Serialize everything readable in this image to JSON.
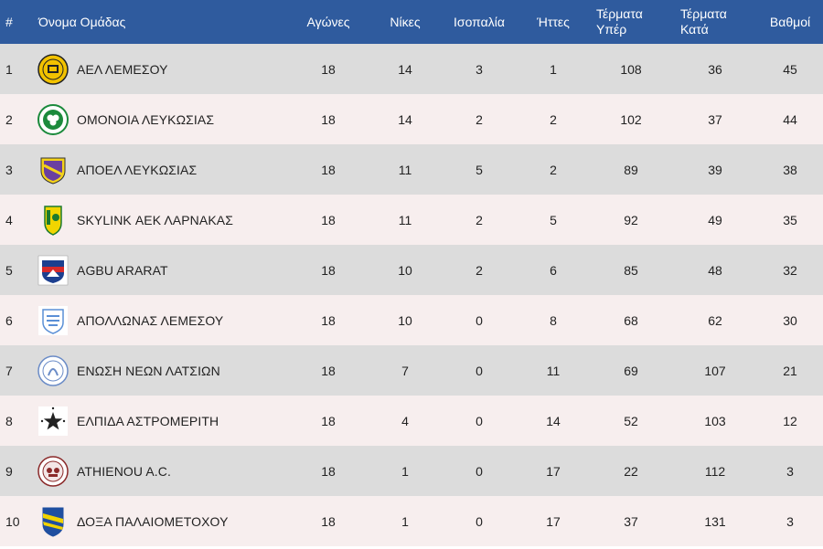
{
  "table": {
    "headers": {
      "rank": "#",
      "team": "Όνομα Ομάδας",
      "played": "Αγώνες",
      "wins": "Νίκες",
      "draws": "Ισοπαλία",
      "losses": "Ήττες",
      "goals_for": "Τέρματα Υπέρ",
      "goals_against": "Τέρματα Κατά",
      "points": "Βαθμοί"
    },
    "rows": [
      {
        "rank": "1",
        "team": "ΑΕΛ ΛΕΜΕΣΟΥ",
        "logo": "ael-limassol-crest-icon",
        "played": "18",
        "wins": "14",
        "draws": "3",
        "losses": "1",
        "goals_for": "108",
        "goals_against": "36",
        "points": "45"
      },
      {
        "rank": "2",
        "team": "ΟΜΟΝΟΙΑ ΛΕΥΚΩΣΙΑΣ",
        "logo": "omonoia-crest-icon",
        "played": "18",
        "wins": "14",
        "draws": "2",
        "losses": "2",
        "goals_for": "102",
        "goals_against": "37",
        "points": "44"
      },
      {
        "rank": "3",
        "team": "ΑΠΟΕΛ ΛΕΥΚΩΣΙΑΣ",
        "logo": "apoel-crest-icon",
        "played": "18",
        "wins": "11",
        "draws": "5",
        "losses": "2",
        "goals_for": "89",
        "goals_against": "39",
        "points": "38"
      },
      {
        "rank": "4",
        "team": "SKYLINK ΑΕΚ ΛΑΡΝΑΚΑΣ",
        "logo": "aek-larnaca-crest-icon",
        "played": "18",
        "wins": "11",
        "draws": "2",
        "losses": "5",
        "goals_for": "92",
        "goals_against": "49",
        "points": "35"
      },
      {
        "rank": "5",
        "team": "AGBU ARARAT",
        "logo": "agbu-ararat-crest-icon",
        "played": "18",
        "wins": "10",
        "draws": "2",
        "losses": "6",
        "goals_for": "85",
        "goals_against": "48",
        "points": "32"
      },
      {
        "rank": "6",
        "team": "ΑΠΟΛΛΩΝΑΣ ΛΕΜΕΣΟΥ",
        "logo": "apollon-crest-icon",
        "played": "18",
        "wins": "10",
        "draws": "0",
        "losses": "8",
        "goals_for": "68",
        "goals_against": "62",
        "points": "30"
      },
      {
        "rank": "7",
        "team": "ΕΝΩΣΗ ΝΕΩΝ ΛΑΤΣΙΩΝ",
        "logo": "enosi-neon-latsion-crest-icon",
        "played": "18",
        "wins": "7",
        "draws": "0",
        "losses": "11",
        "goals_for": "69",
        "goals_against": "107",
        "points": "21"
      },
      {
        "rank": "8",
        "team": "ΕΛΠΙΔΑ ΑΣΤΡΟΜΕΡΙΤΗ",
        "logo": "elpida-astromeriti-star-icon",
        "played": "18",
        "wins": "4",
        "draws": "0",
        "losses": "14",
        "goals_for": "52",
        "goals_against": "103",
        "points": "12"
      },
      {
        "rank": "9",
        "team": "ATHIENOU A.C.",
        "logo": "athienou-crest-icon",
        "played": "18",
        "wins": "1",
        "draws": "0",
        "losses": "17",
        "goals_for": "22",
        "goals_against": "112",
        "points": "3"
      },
      {
        "rank": "10",
        "team": "ΔΟΞΑ ΠΑΛΑΙΟΜΕΤΟΧΟΥ",
        "logo": "doxa-palaiometochou-crest-icon",
        "played": "18",
        "wins": "1",
        "draws": "0",
        "losses": "17",
        "goals_for": "37",
        "goals_against": "131",
        "points": "3"
      }
    ]
  },
  "colors": {
    "header_bg": "#2f5b9e",
    "row_odd": "#dcdcdc",
    "row_even": "#f7eeee",
    "text": "#222222"
  }
}
